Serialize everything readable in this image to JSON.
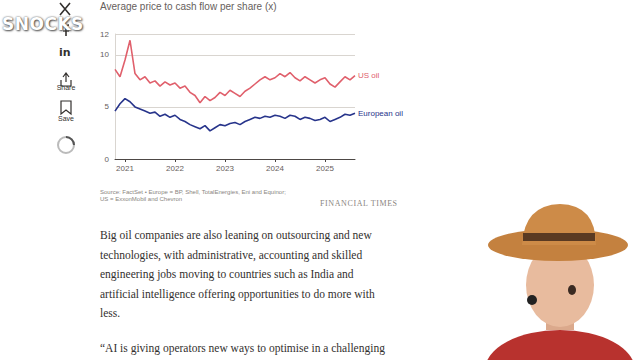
{
  "chart_data": {
    "type": "line",
    "subtitle": "Average price to cash flow per share (x)",
    "x": [
      2020.8,
      2020.9,
      2021.0,
      2021.1,
      2021.2,
      2021.3,
      2021.4,
      2021.5,
      2021.6,
      2021.7,
      2021.8,
      2021.9,
      2022.0,
      2022.1,
      2022.2,
      2022.3,
      2022.4,
      2022.5,
      2022.6,
      2022.7,
      2022.8,
      2022.9,
      2023.0,
      2023.1,
      2023.2,
      2023.3,
      2023.4,
      2023.5,
      2023.6,
      2023.7,
      2023.8,
      2023.9,
      2024.0,
      2024.1,
      2024.2,
      2024.3,
      2024.4,
      2024.5,
      2024.6,
      2024.7,
      2024.8,
      2024.9,
      2025.0,
      2025.1,
      2025.2,
      2025.3,
      2025.4,
      2025.5,
      2025.6
    ],
    "series": [
      {
        "name": "US oil",
        "color": "#e0606c",
        "values": [
          8.6,
          7.9,
          9.5,
          11.4,
          8.2,
          7.6,
          7.9,
          7.3,
          7.5,
          7.0,
          7.4,
          7.1,
          7.3,
          6.8,
          7.0,
          6.4,
          6.1,
          5.4,
          6.0,
          5.6,
          5.9,
          6.4,
          6.1,
          6.6,
          6.3,
          6.0,
          6.5,
          6.8,
          7.2,
          7.6,
          7.9,
          7.6,
          7.8,
          8.2,
          7.9,
          8.3,
          7.8,
          7.5,
          7.9,
          7.6,
          7.3,
          7.6,
          7.8,
          7.2,
          6.9,
          7.4,
          7.9,
          7.6,
          8.0
        ]
      },
      {
        "name": "European oil",
        "color": "#27348b",
        "values": [
          4.6,
          5.3,
          5.8,
          5.5,
          5.0,
          4.8,
          4.6,
          4.4,
          4.5,
          4.1,
          4.3,
          4.0,
          4.2,
          3.8,
          3.6,
          3.3,
          3.1,
          2.9,
          3.2,
          2.7,
          3.0,
          3.3,
          3.2,
          3.4,
          3.5,
          3.3,
          3.6,
          3.8,
          4.0,
          3.9,
          4.1,
          4.0,
          4.2,
          4.1,
          3.9,
          4.2,
          4.1,
          3.8,
          4.0,
          3.9,
          3.7,
          3.8,
          4.0,
          3.6,
          3.8,
          4.0,
          4.3,
          4.2,
          4.4
        ]
      }
    ],
    "xlim": [
      2020.8,
      2025.6
    ],
    "xticks": [
      2021,
      2022,
      2023,
      2024,
      2025
    ],
    "ylim": [
      0,
      12
    ],
    "yticks": [
      0,
      5,
      10
    ],
    "grid": true
  },
  "page": {
    "watermark": "SNOCKS",
    "sidebar": [
      "in",
      "Share",
      "Save"
    ],
    "source_lines": [
      "Source: FactSet • Europe = BP, Shell, TotalEnergies, Eni and Equinor;",
      "US = ExxonMobil and Chevron"
    ],
    "publisher": "FINANCIAL TIMES",
    "body_lines": [
      "Big oil companies are also leaning on outsourcing and new",
      "technologies, with administrative, accounting and skilled",
      "engineering jobs moving to countries such as India and",
      "artificial intelligence offering opportunities to do more with",
      "less."
    ],
    "quote_line": "“AI is giving operators new ways to optimise in a challenging"
  }
}
